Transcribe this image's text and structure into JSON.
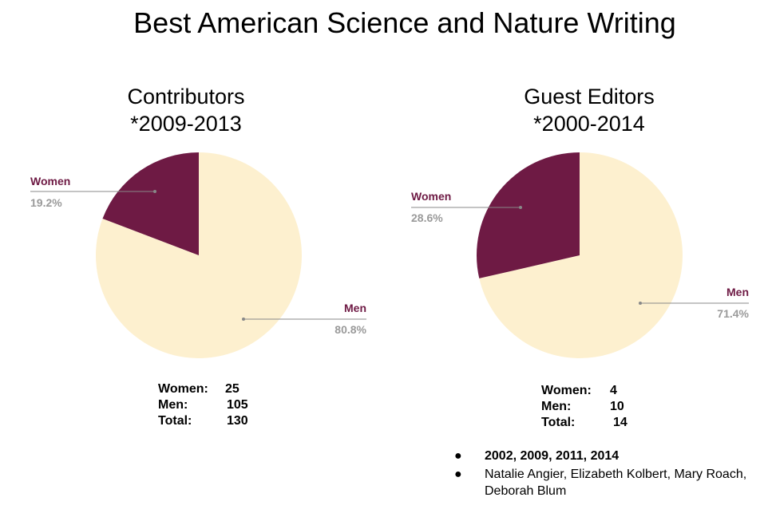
{
  "title": "Best American Science and Nature Writing",
  "colors": {
    "women": "#6e1a44",
    "men": "#fdf0cf",
    "leader": "#888888",
    "pct": "#9a9a9a"
  },
  "chart_data": [
    {
      "type": "pie",
      "title_line1": "Contributors",
      "title_line2": "*2009-2013",
      "slices": [
        {
          "label": "Women",
          "percent": 19.2,
          "percent_text": "19.2%"
        },
        {
          "label": "Men",
          "percent": 80.8,
          "percent_text": "80.8%"
        }
      ],
      "stats": [
        {
          "key": "Women:",
          "value": "25"
        },
        {
          "key": "Men:",
          "value": "105"
        },
        {
          "key": "Total:",
          "value": "130"
        }
      ]
    },
    {
      "type": "pie",
      "title_line1": "Guest Editors",
      "title_line2": "*2000-2014",
      "slices": [
        {
          "label": "Women",
          "percent": 28.6,
          "percent_text": "28.6%"
        },
        {
          "label": "Men",
          "percent": 71.4,
          "percent_text": "71.4%"
        }
      ],
      "stats": [
        {
          "key": "Women:",
          "value": "4"
        },
        {
          "key": "Men:",
          "value": "10"
        },
        {
          "key": "Total:",
          "value": "14"
        }
      ]
    }
  ],
  "notes": [
    {
      "bullet": "●",
      "text": "2002, 2009, 2011, 2014"
    },
    {
      "bullet": "●",
      "text": "Natalie Angier, Elizabeth Kolbert, Mary Roach, Deborah Blum"
    }
  ]
}
